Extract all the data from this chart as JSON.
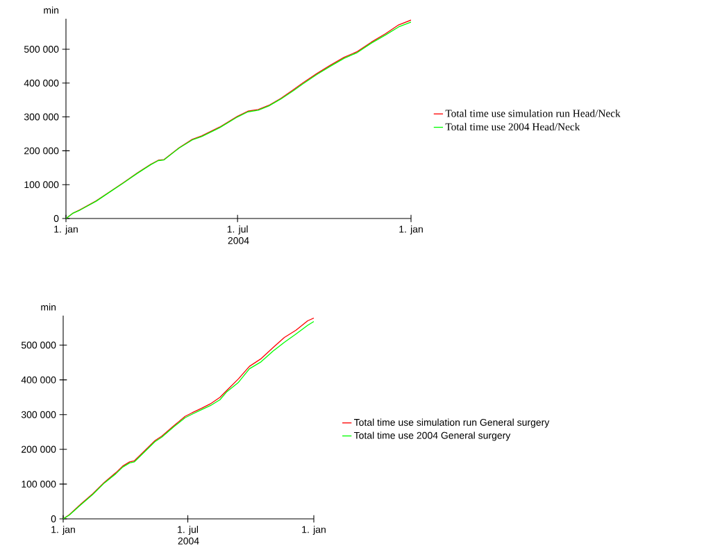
{
  "chart_data": [
    {
      "type": "line",
      "ylabel": "min",
      "xlabel": "2004",
      "legend": "right",
      "xlim": [
        "2004-01-01",
        "2005-01-01"
      ],
      "xticks": [
        {
          "value": "2004-01-01",
          "label": "1. jan"
        },
        {
          "value": "2004-07-01",
          "label": "1. jul"
        },
        {
          "value": "2005-01-01",
          "label": "1. jan"
        }
      ],
      "ylim": [
        0,
        590000
      ],
      "yticks": [
        0,
        {
          "value": 100000,
          "label": "100 000"
        },
        {
          "value": 200000,
          "label": "200 000"
        },
        {
          "value": 300000,
          "label": "300 000"
        },
        {
          "value": 400000,
          "label": "400 000"
        },
        {
          "value": 500000,
          "label": "500 000"
        }
      ],
      "x": [
        "2004-01-01",
        "2004-01-08",
        "2004-01-16",
        "2004-02-02",
        "2004-02-17",
        "2004-03-02",
        "2004-03-17",
        "2004-03-31",
        "2004-04-08",
        "2004-04-14",
        "2004-04-30",
        "2004-05-14",
        "2004-05-24",
        "2004-06-12",
        "2004-07-01",
        "2004-07-12",
        "2004-07-23",
        "2004-08-03",
        "2004-08-16",
        "2004-08-29",
        "2004-09-08",
        "2004-09-23",
        "2004-10-07",
        "2004-10-22",
        "2004-11-05",
        "2004-11-20",
        "2004-12-05",
        "2004-12-19",
        "2005-01-01"
      ],
      "series": [
        {
          "name": "Total time use simulation run Head/Neck",
          "color": "#ff0000",
          "values": [
            0,
            15000,
            26000,
            52000,
            80000,
            106000,
            135000,
            160000,
            172000,
            174000,
            209000,
            234000,
            244000,
            270000,
            302000,
            317000,
            322000,
            334000,
            355000,
            380000,
            400000,
            428000,
            452000,
            476000,
            493000,
            521000,
            546000,
            572000,
            586000
          ]
        },
        {
          "name": "Total time use 2004 Head/Neck",
          "color": "#00ff00",
          "values": [
            0,
            15000,
            25000,
            51000,
            79000,
            105000,
            134000,
            159000,
            171000,
            173000,
            208000,
            232000,
            242000,
            268000,
            300000,
            315000,
            320000,
            332000,
            353000,
            377000,
            397000,
            425000,
            449000,
            473000,
            490000,
            518000,
            542000,
            566000,
            580000
          ]
        }
      ]
    },
    {
      "type": "line",
      "ylabel": "min",
      "xlabel": "2004",
      "legend": "right",
      "xlim": [
        "2004-01-01",
        "2005-01-01"
      ],
      "xticks": [
        {
          "value": "2004-01-01",
          "label": "1. jan"
        },
        {
          "value": "2004-07-01",
          "label": "1. jul"
        },
        {
          "value": "2005-01-01",
          "label": "1. jan"
        }
      ],
      "ylim": [
        0,
        585000
      ],
      "yticks": [
        0,
        {
          "value": 100000,
          "label": "100 000"
        },
        {
          "value": 200000,
          "label": "200 000"
        },
        {
          "value": 300000,
          "label": "300 000"
        },
        {
          "value": 400000,
          "label": "400 000"
        },
        {
          "value": 500000,
          "label": "500 000"
        }
      ],
      "x": [
        "2004-01-01",
        "2004-01-10",
        "2004-01-27",
        "2004-02-13",
        "2004-03-01",
        "2004-03-18",
        "2004-03-28",
        "2004-04-07",
        "2004-04-14",
        "2004-04-27",
        "2004-05-14",
        "2004-05-24",
        "2004-06-10",
        "2004-06-27",
        "2004-07-07",
        "2004-07-21",
        "2004-08-03",
        "2004-08-17",
        "2004-08-27",
        "2004-09-13",
        "2004-09-29",
        "2004-10-16",
        "2004-11-02",
        "2004-11-19",
        "2004-12-06",
        "2004-12-23",
        "2005-01-01"
      ],
      "series": [
        {
          "name": "Total time use simulation run General surgery",
          "color": "#ff0000",
          "values": [
            0,
            12000,
            43000,
            72000,
            105000,
            133000,
            152000,
            164000,
            167000,
            192000,
            225000,
            238000,
            267000,
            295000,
            305000,
            318000,
            331000,
            350000,
            370000,
            403000,
            439000,
            461000,
            492000,
            522000,
            543000,
            570000,
            578000
          ]
        },
        {
          "name": "Total time use 2004 General surgery",
          "color": "#00ff00",
          "values": [
            0,
            11000,
            41000,
            70000,
            103000,
            130000,
            149000,
            161000,
            164000,
            189000,
            222000,
            235000,
            264000,
            291000,
            301000,
            314000,
            326000,
            343000,
            366000,
            393000,
            432000,
            452000,
            482000,
            508000,
            532000,
            557000,
            568000
          ]
        }
      ]
    }
  ]
}
